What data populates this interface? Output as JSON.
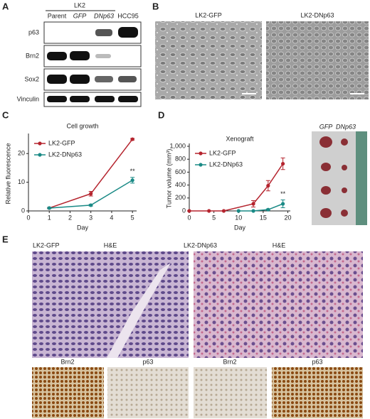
{
  "panels": {
    "a": "A",
    "b": "B",
    "c": "C",
    "d": "D",
    "e": "E"
  },
  "blot": {
    "group": "LK2",
    "lanes": [
      "Parent",
      "GFP",
      "DNp63",
      "HCC95"
    ],
    "rows": [
      "p63",
      "Brn2",
      "Sox2",
      "Vinculin"
    ]
  },
  "micrographs": {
    "left": "LK2-GFP",
    "right": "LK2-DNp63"
  },
  "tumor_photo": {
    "left": "GFP",
    "right": "DNp63"
  },
  "histology": {
    "left_title": "LK2-GFP",
    "left_stain": "H&E",
    "right_title": "LK2-DNp63",
    "right_stain": "H&E",
    "small": [
      "Brn2",
      "p63",
      "Brn2",
      "p63"
    ]
  },
  "chart_data": [
    {
      "type": "line",
      "title": "Cell growth",
      "xlabel": "Day",
      "ylabel": "Relative fluorescence",
      "xlim": [
        0,
        5.2
      ],
      "xticks": [
        0,
        1,
        2,
        3,
        4,
        5
      ],
      "ylim": [
        0,
        26
      ],
      "yticks": [
        0,
        10,
        20
      ],
      "legend": "upper left",
      "annotation": "**",
      "series": [
        {
          "name": "LK2-GFP",
          "color": "#b5242e",
          "x": [
            1,
            3,
            5
          ],
          "values": [
            1,
            6,
            25
          ],
          "errors": [
            0.2,
            0.8,
            0.3
          ]
        },
        {
          "name": "LK2-DNp63",
          "color": "#1a8a86",
          "x": [
            1,
            3,
            5
          ],
          "values": [
            1,
            2,
            10.7
          ],
          "errors": [
            0.2,
            0.3,
            1
          ]
        }
      ]
    },
    {
      "type": "line",
      "title": "Xenograft",
      "xlabel": "Day",
      "ylabel": "Tumor volume (mm³)",
      "xlim": [
        0,
        20.5
      ],
      "xticks": [
        0,
        5,
        10,
        15,
        20
      ],
      "ylim": [
        0,
        1000
      ],
      "yticks": [
        0,
        200,
        400,
        600,
        800,
        {
          "value": 1000,
          "label": "1,000"
        }
      ],
      "legend": "upper left",
      "annotation": "**",
      "series": [
        {
          "name": "LK2-GFP",
          "color": "#b5242e",
          "x": [
            0,
            4,
            7,
            13,
            16,
            19
          ],
          "values": [
            0,
            0,
            0,
            110,
            390,
            730
          ],
          "errors": [
            0,
            0,
            0,
            50,
            80,
            90
          ]
        },
        {
          "name": "LK2-DNp63",
          "color": "#1a8a86",
          "x": [
            10,
            13,
            16,
            19
          ],
          "values": [
            0,
            0,
            20,
            110
          ],
          "errors": [
            0,
            0,
            10,
            60
          ]
        }
      ]
    }
  ]
}
